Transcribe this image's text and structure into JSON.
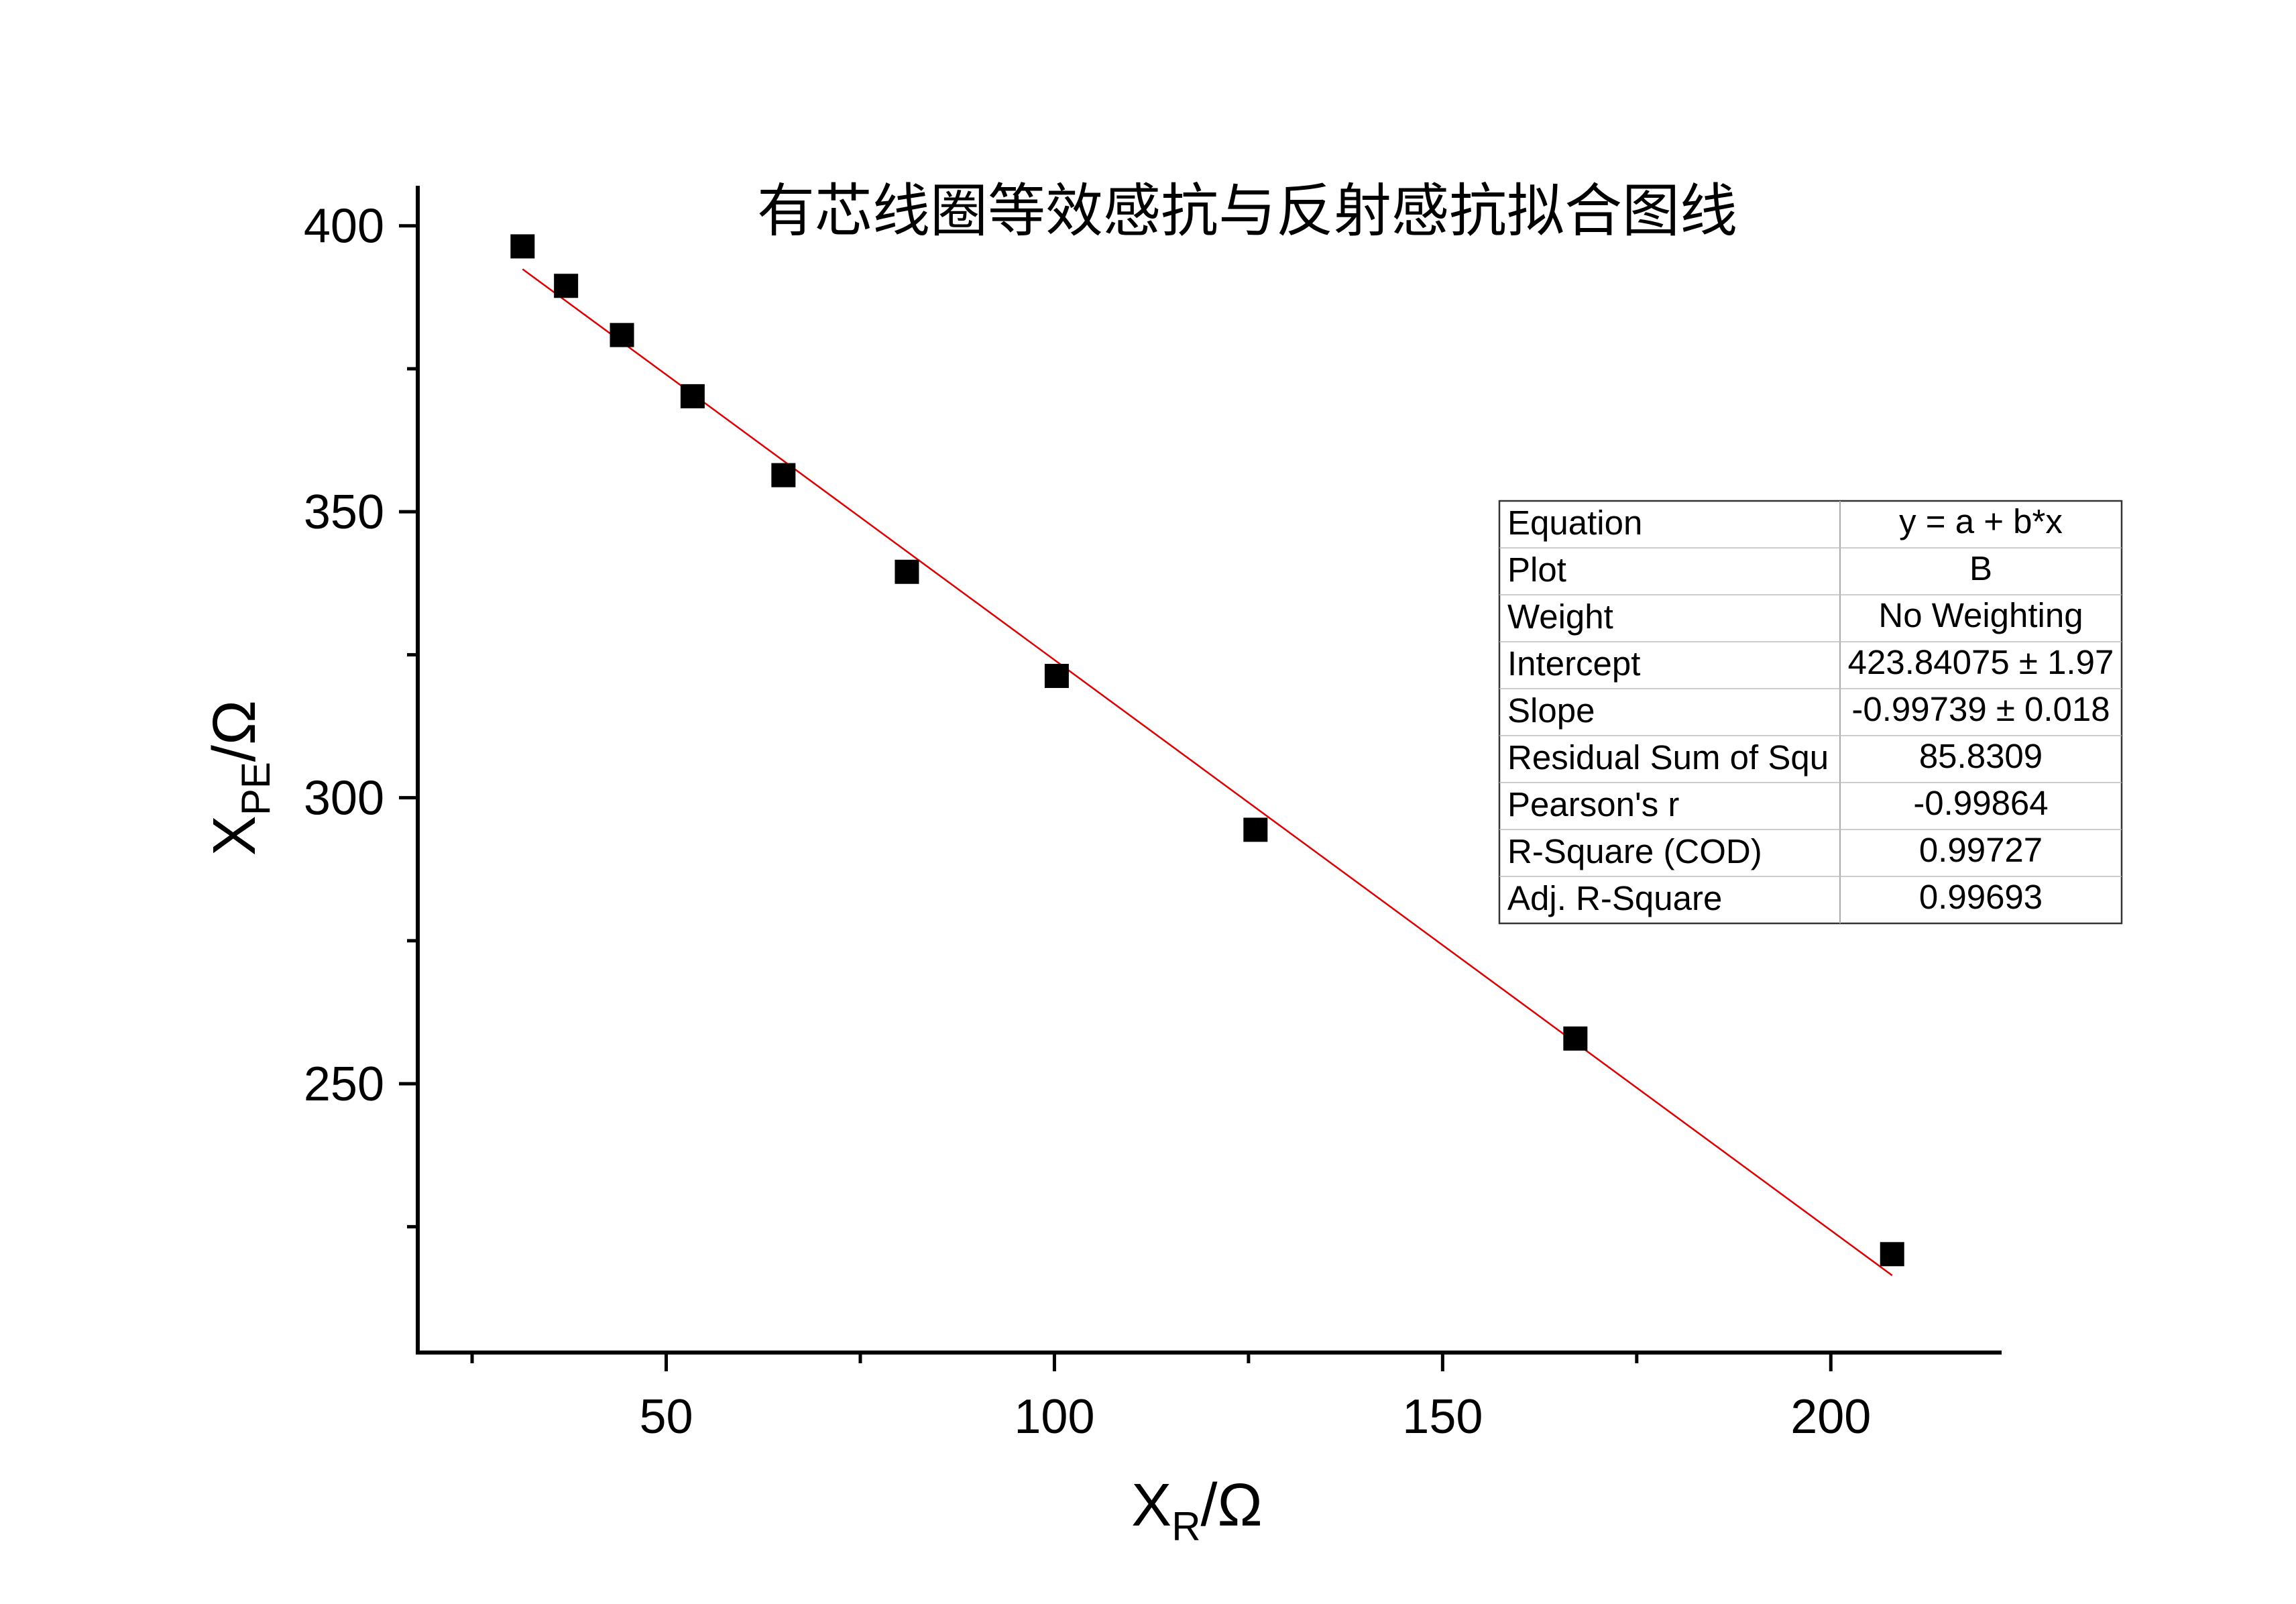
{
  "chart_data": {
    "type": "scatter",
    "title": "有芯线圈等效感抗与反射感抗拟合图线",
    "xlabel": {
      "main": "X",
      "sub": "R",
      "suffix": "/Ω"
    },
    "ylabel": {
      "main": "X",
      "sub": "PE",
      "suffix": "/Ω"
    },
    "xlim": [
      18,
      222
    ],
    "ylim": [
      203,
      407
    ],
    "xticks": [
      50,
      100,
      150,
      200
    ],
    "xtick_labels": [
      "50",
      "100",
      "150",
      "200"
    ],
    "x_minor_ticks": [
      25,
      75,
      125,
      175
    ],
    "yticks": [
      250,
      300,
      350,
      400
    ],
    "ytick_labels": [
      "250",
      "300",
      "350",
      "400"
    ],
    "y_minor_ticks": [
      225,
      275,
      325,
      375
    ],
    "grid": false,
    "series": [
      {
        "marker": "square",
        "color": "#000000",
        "points": [
          {
            "x": 31.5,
            "y": 396.4
          },
          {
            "x": 37.1,
            "y": 389.5
          },
          {
            "x": 44.3,
            "y": 380.9
          },
          {
            "x": 53.4,
            "y": 370.2
          },
          {
            "x": 65.1,
            "y": 356.4
          },
          {
            "x": 81.0,
            "y": 339.5
          },
          {
            "x": 100.3,
            "y": 321.3
          },
          {
            "x": 125.9,
            "y": 294.4
          },
          {
            "x": 167.1,
            "y": 257.9
          },
          {
            "x": 207.9,
            "y": 220.2
          }
        ]
      }
    ],
    "fit": {
      "color": "#e00000",
      "intercept": 423.84075,
      "slope": -0.99739,
      "x_range": [
        31.5,
        207.9
      ]
    },
    "fit_table": {
      "rows": [
        {
          "label": "Equation",
          "value": "y = a + b*x"
        },
        {
          "label": "Plot",
          "value": "B"
        },
        {
          "label": "Weight",
          "value": "No Weighting"
        },
        {
          "label": "Intercept",
          "value": "423.84075 ± 1.97"
        },
        {
          "label": "Slope",
          "value": "-0.99739 ± 0.018"
        },
        {
          "label": "Residual Sum of Squ",
          "value": "85.8309"
        },
        {
          "label": "Pearson's r",
          "value": "-0.99864"
        },
        {
          "label": "R-Square (COD)",
          "value": "0.99727"
        },
        {
          "label": "Adj. R-Square",
          "value": "0.99693"
        }
      ]
    }
  }
}
